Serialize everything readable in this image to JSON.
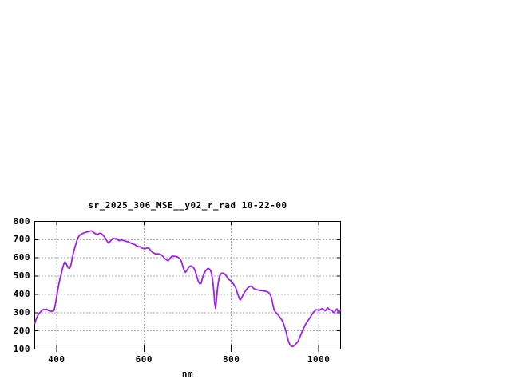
{
  "chart_data": {
    "type": "line",
    "title": "sr_2025_306_MSE__y02_r_rad 10-22-00",
    "xlabel": "nm",
    "ylabel": "",
    "xlim": [
      350,
      1050
    ],
    "ylim": [
      100,
      800
    ],
    "xticks": [
      400,
      600,
      800,
      1000
    ],
    "yticks": [
      100,
      200,
      300,
      400,
      500,
      600,
      700,
      800
    ],
    "grid": true,
    "legend": false,
    "line_color": "#a020f0",
    "grid_color": "#aaaaaa",
    "border_color": "#000000",
    "background_color": "#ffffff",
    "points": [
      [
        350,
        240
      ],
      [
        353,
        262
      ],
      [
        356,
        280
      ],
      [
        359,
        292
      ],
      [
        362,
        300
      ],
      [
        365,
        308
      ],
      [
        368,
        315
      ],
      [
        371,
        318
      ],
      [
        374,
        316
      ],
      [
        377,
        319
      ],
      [
        380,
        314
      ],
      [
        383,
        310
      ],
      [
        386,
        306
      ],
      [
        389,
        309
      ],
      [
        392,
        306
      ],
      [
        394,
        312
      ],
      [
        396,
        330
      ],
      [
        399,
        370
      ],
      [
        402,
        415
      ],
      [
        405,
        455
      ],
      [
        408,
        487
      ],
      [
        411,
        515
      ],
      [
        414,
        545
      ],
      [
        417,
        570
      ],
      [
        419,
        578
      ],
      [
        421,
        574
      ],
      [
        424,
        558
      ],
      [
        427,
        545
      ],
      [
        430,
        543
      ],
      [
        433,
        562
      ],
      [
        436,
        600
      ],
      [
        439,
        632
      ],
      [
        442,
        658
      ],
      [
        445,
        683
      ],
      [
        448,
        706
      ],
      [
        451,
        718
      ],
      [
        454,
        726
      ],
      [
        457,
        731
      ],
      [
        460,
        734
      ],
      [
        464,
        738
      ],
      [
        468,
        741
      ],
      [
        472,
        743
      ],
      [
        476,
        746
      ],
      [
        480,
        748
      ],
      [
        483,
        743
      ],
      [
        486,
        737
      ],
      [
        489,
        733
      ],
      [
        492,
        726
      ],
      [
        495,
        730
      ],
      [
        498,
        734
      ],
      [
        501,
        735
      ],
      [
        504,
        730
      ],
      [
        507,
        722
      ],
      [
        510,
        714
      ],
      [
        513,
        703
      ],
      [
        516,
        690
      ],
      [
        519,
        681
      ],
      [
        522,
        688
      ],
      [
        525,
        697
      ],
      [
        528,
        704
      ],
      [
        531,
        706
      ],
      [
        534,
        704
      ],
      [
        537,
        706
      ],
      [
        540,
        700
      ],
      [
        543,
        694
      ],
      [
        546,
        696
      ],
      [
        549,
        698
      ],
      [
        552,
        696
      ],
      [
        555,
        694
      ],
      [
        558,
        692
      ],
      [
        561,
        690
      ],
      [
        564,
        688
      ],
      [
        567,
        684
      ],
      [
        570,
        681
      ],
      [
        573,
        678
      ],
      [
        576,
        675
      ],
      [
        579,
        673
      ],
      [
        582,
        668
      ],
      [
        585,
        665
      ],
      [
        588,
        660
      ],
      [
        590,
        662
      ],
      [
        593,
        657
      ],
      [
        596,
        654
      ],
      [
        599,
        651
      ],
      [
        602,
        650
      ],
      [
        605,
        652
      ],
      [
        608,
        654
      ],
      [
        611,
        653
      ],
      [
        614,
        645
      ],
      [
        617,
        636
      ],
      [
        620,
        630
      ],
      [
        623,
        626
      ],
      [
        626,
        623
      ],
      [
        629,
        622
      ],
      [
        632,
        622
      ],
      [
        635,
        621
      ],
      [
        638,
        619
      ],
      [
        641,
        614
      ],
      [
        644,
        606
      ],
      [
        647,
        598
      ],
      [
        650,
        592
      ],
      [
        653,
        587
      ],
      [
        656,
        585
      ],
      [
        659,
        595
      ],
      [
        662,
        605
      ],
      [
        665,
        610
      ],
      [
        668,
        609
      ],
      [
        671,
        608
      ],
      [
        674,
        608
      ],
      [
        677,
        605
      ],
      [
        680,
        600
      ],
      [
        683,
        594
      ],
      [
        686,
        580
      ],
      [
        689,
        553
      ],
      [
        692,
        532
      ],
      [
        695,
        521
      ],
      [
        698,
        530
      ],
      [
        701,
        542
      ],
      [
        704,
        552
      ],
      [
        707,
        556
      ],
      [
        710,
        553
      ],
      [
        713,
        549
      ],
      [
        716,
        535
      ],
      [
        719,
        515
      ],
      [
        722,
        490
      ],
      [
        725,
        468
      ],
      [
        728,
        457
      ],
      [
        731,
        462
      ],
      [
        734,
        490
      ],
      [
        737,
        510
      ],
      [
        740,
        525
      ],
      [
        743,
        535
      ],
      [
        746,
        542
      ],
      [
        749,
        540
      ],
      [
        752,
        533
      ],
      [
        755,
        512
      ],
      [
        758,
        465
      ],
      [
        760,
        415
      ],
      [
        762,
        352
      ],
      [
        764,
        323
      ],
      [
        766,
        368
      ],
      [
        768,
        425
      ],
      [
        770,
        462
      ],
      [
        772,
        490
      ],
      [
        774,
        505
      ],
      [
        777,
        515
      ],
      [
        780,
        517
      ],
      [
        783,
        514
      ],
      [
        786,
        508
      ],
      [
        789,
        500
      ],
      [
        792,
        487
      ],
      [
        795,
        480
      ],
      [
        798,
        476
      ],
      [
        801,
        468
      ],
      [
        804,
        459
      ],
      [
        807,
        449
      ],
      [
        810,
        437
      ],
      [
        813,
        415
      ],
      [
        816,
        392
      ],
      [
        819,
        374
      ],
      [
        821,
        370
      ],
      [
        824,
        383
      ],
      [
        827,
        397
      ],
      [
        830,
        410
      ],
      [
        833,
        421
      ],
      [
        836,
        431
      ],
      [
        839,
        438
      ],
      [
        842,
        443
      ],
      [
        845,
        445
      ],
      [
        848,
        440
      ],
      [
        851,
        433
      ],
      [
        854,
        428
      ],
      [
        857,
        426
      ],
      [
        860,
        425
      ],
      [
        863,
        423
      ],
      [
        866,
        421
      ],
      [
        870,
        420
      ],
      [
        874,
        419
      ],
      [
        878,
        417
      ],
      [
        882,
        414
      ],
      [
        886,
        409
      ],
      [
        889,
        400
      ],
      [
        892,
        380
      ],
      [
        895,
        345
      ],
      [
        898,
        315
      ],
      [
        901,
        302
      ],
      [
        904,
        297
      ],
      [
        907,
        287
      ],
      [
        910,
        278
      ],
      [
        913,
        268
      ],
      [
        916,
        258
      ],
      [
        919,
        243
      ],
      [
        922,
        222
      ],
      [
        925,
        198
      ],
      [
        928,
        168
      ],
      [
        931,
        142
      ],
      [
        934,
        124
      ],
      [
        937,
        116
      ],
      [
        940,
        114
      ],
      [
        943,
        118
      ],
      [
        946,
        124
      ],
      [
        949,
        132
      ],
      [
        952,
        140
      ],
      [
        955,
        155
      ],
      [
        958,
        172
      ],
      [
        961,
        190
      ],
      [
        964,
        205
      ],
      [
        967,
        222
      ],
      [
        970,
        235
      ],
      [
        973,
        248
      ],
      [
        976,
        258
      ],
      [
        979,
        268
      ],
      [
        982,
        280
      ],
      [
        985,
        292
      ],
      [
        988,
        302
      ],
      [
        991,
        309
      ],
      [
        994,
        316
      ],
      [
        997,
        315
      ],
      [
        1000,
        312
      ],
      [
        1003,
        315
      ],
      [
        1006,
        320
      ],
      [
        1009,
        322
      ],
      [
        1012,
        315
      ],
      [
        1015,
        310
      ],
      [
        1018,
        320
      ],
      [
        1021,
        326
      ],
      [
        1024,
        318
      ],
      [
        1027,
        314
      ],
      [
        1030,
        313
      ],
      [
        1033,
        303
      ],
      [
        1036,
        300
      ],
      [
        1039,
        315
      ],
      [
        1042,
        320
      ],
      [
        1045,
        300
      ],
      [
        1048,
        308
      ],
      [
        1050,
        312
      ]
    ]
  }
}
